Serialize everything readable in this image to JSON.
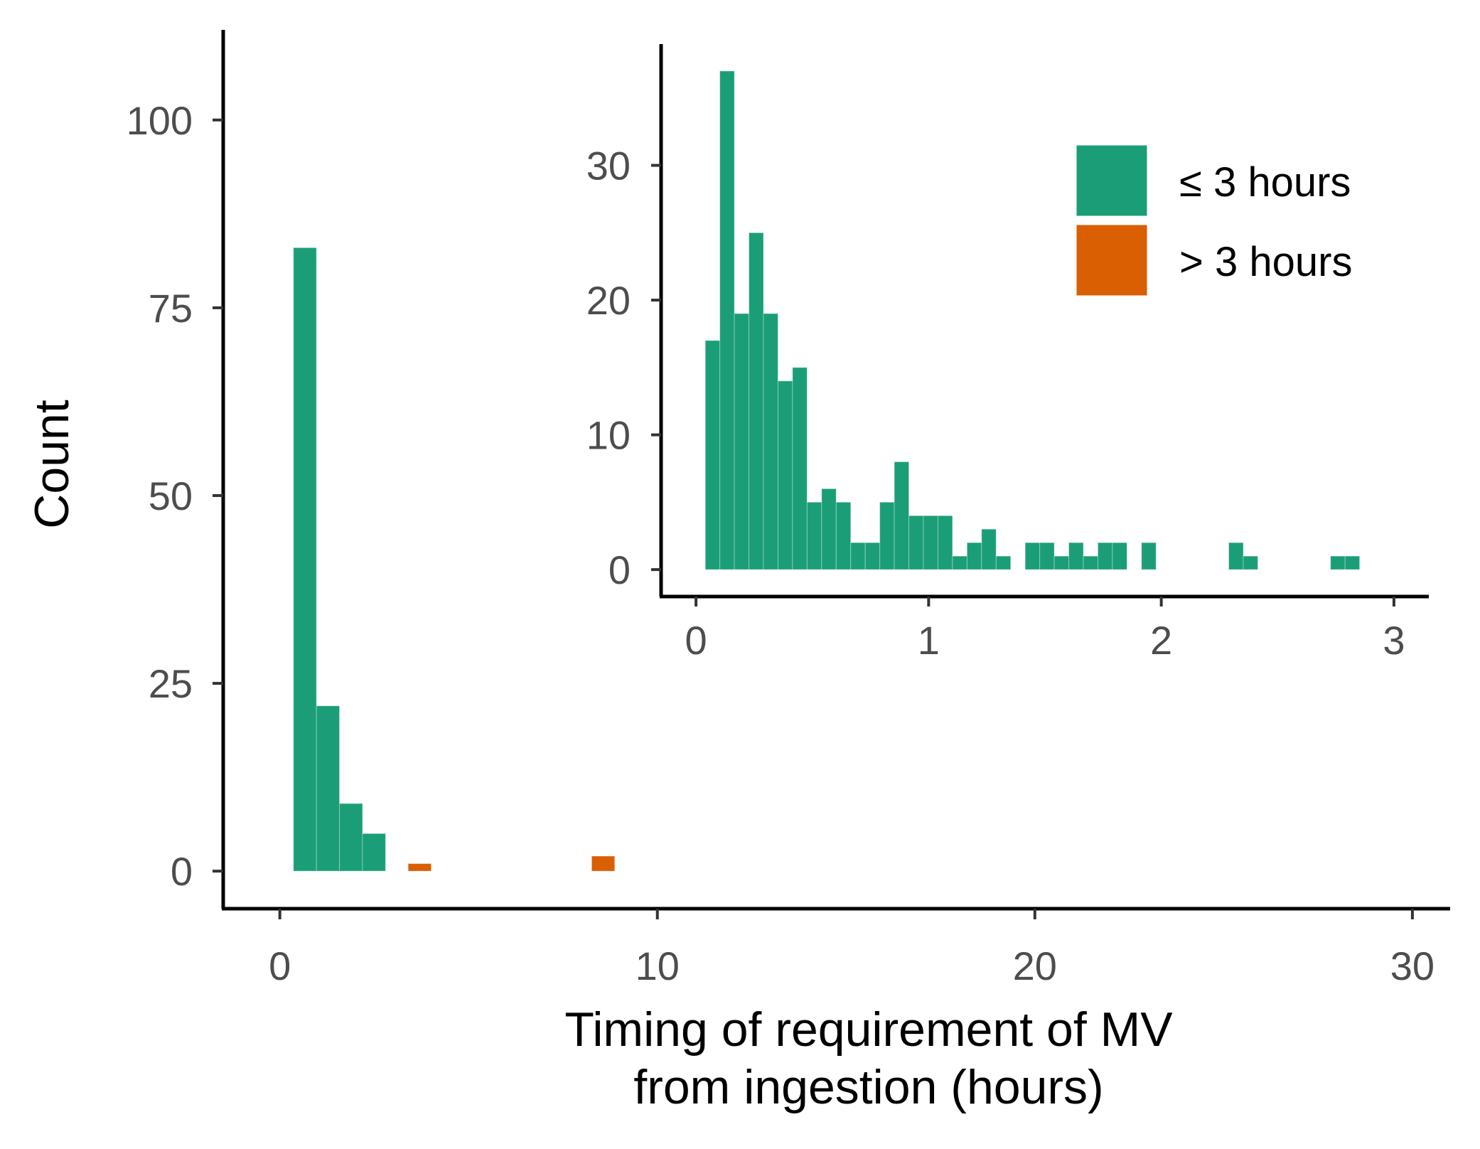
{
  "chart_data": [
    {
      "id": "main",
      "type": "bar",
      "subtype": "histogram",
      "title": "",
      "xlabel_lines": [
        "Timing of requirement of MV",
        "from ingestion (hours)"
      ],
      "ylabel": "Count",
      "xlim": [
        -1.5,
        31
      ],
      "ylim": [
        -5,
        112
      ],
      "xticks": [
        0,
        10,
        20,
        30
      ],
      "yticks": [
        0,
        25,
        50,
        75,
        100
      ],
      "grid": false,
      "bins": [
        {
          "x0": 0.36,
          "x1": 0.97,
          "y": 83,
          "group": "le3"
        },
        {
          "x0": 0.97,
          "x1": 1.58,
          "y": 22,
          "group": "le3"
        },
        {
          "x0": 1.58,
          "x1": 2.19,
          "y": 9,
          "group": "le3"
        },
        {
          "x0": 2.19,
          "x1": 2.8,
          "y": 5,
          "group": "le3"
        },
        {
          "x0": 3.4,
          "x1": 4.01,
          "y": 1,
          "group": "gt3"
        },
        {
          "x0": 8.26,
          "x1": 8.87,
          "y": 2,
          "group": "gt3"
        }
      ]
    },
    {
      "id": "inset",
      "type": "bar",
      "subtype": "histogram",
      "title": "",
      "xlabel": "",
      "ylabel": "",
      "xlim": [
        -0.15,
        3.15
      ],
      "ylim": [
        -2,
        39
      ],
      "xticks": [
        0,
        1,
        2,
        3
      ],
      "yticks": [
        0,
        10,
        20,
        30
      ],
      "grid": false,
      "bin_start": 0.04,
      "bin_width": 0.0625,
      "counts": [
        17,
        37,
        19,
        25,
        19,
        14,
        15,
        5,
        6,
        5,
        2,
        2,
        5,
        8,
        4,
        4,
        4,
        1,
        2,
        3,
        1,
        0,
        2,
        2,
        1,
        2,
        1,
        2,
        2,
        0,
        2,
        0,
        0,
        0,
        0,
        0,
        2,
        1,
        0,
        0,
        0,
        0,
        0,
        1,
        1
      ],
      "group": "le3"
    }
  ],
  "legend": {
    "position": "top-right of inset",
    "items": [
      {
        "key": "le3",
        "label": "≤ 3 hours",
        "color": "#1b9e77"
      },
      {
        "key": "gt3",
        "label": "> 3 hours",
        "color": "#d95f02"
      }
    ]
  },
  "colors": {
    "le3": "#1b9e77",
    "gt3": "#d95f02",
    "axis": "#000000",
    "tick_text": "#4d4d4d"
  }
}
